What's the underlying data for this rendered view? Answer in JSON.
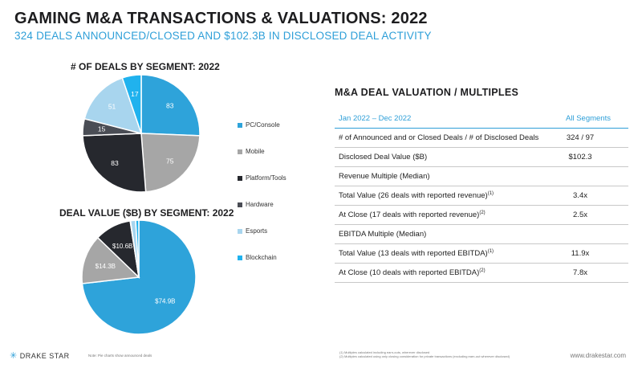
{
  "header": {
    "title": "GAMING M&A TRANSACTIONS & VALUATIONS: 2022",
    "subtitle": "324 DEALS ANNOUNCED/CLOSED AND $102.3B IN DISCLOSED DEAL ACTIVITY"
  },
  "colors": {
    "PC/Console": "#2ea3da",
    "Mobile": "#a6a6a6",
    "Platform/Tools": "#26282e",
    "Hardware": "#4a4d55",
    "Esports": "#a8d5ee",
    "Blockchain": "#20b2ee"
  },
  "legend": {
    "items": [
      {
        "label": "PC/Console",
        "color": "#2ea3da"
      },
      {
        "label": "Mobile",
        "color": "#a6a6a6"
      },
      {
        "label": "Platform/Tools",
        "color": "#26282e"
      },
      {
        "label": "Hardware",
        "color": "#4a4d55"
      },
      {
        "label": "Esports",
        "color": "#a8d5ee"
      },
      {
        "label": "Blockchain",
        "color": "#20b2ee"
      }
    ]
  },
  "chart_data": [
    {
      "type": "pie",
      "title": "# OF DEALS BY SEGMENT: 2022",
      "categories": [
        "PC/Console",
        "Mobile",
        "Platform/Tools",
        "Hardware",
        "Esports",
        "Blockchain"
      ],
      "values": [
        83,
        75,
        83,
        15,
        51,
        17
      ],
      "data_labels": [
        "83",
        "75",
        "83",
        "15",
        "51",
        "17"
      ],
      "legend_position": "right"
    },
    {
      "type": "pie",
      "title": "DEAL VALUE ($B) BY SEGMENT: 2022",
      "categories": [
        "PC/Console",
        "Mobile",
        "Platform/Tools",
        "Hardware",
        "Esports",
        "Blockchain"
      ],
      "values": [
        74.9,
        14.3,
        10.6,
        0.1,
        1.5,
        0.9
      ],
      "data_labels": [
        "$74.9B",
        "$14.3B",
        "$10.6B",
        "",
        "",
        ""
      ],
      "legend_position": "right"
    }
  ],
  "table": {
    "heading": "M&A DEAL VALUATION / MULTIPLES",
    "col_period": "Jan 2022 – Dec 2022",
    "col_value": "All Segments",
    "rows": [
      {
        "label": "# of Announced and or Closed Deals / # of Disclosed Deals",
        "sup": "",
        "value": "324 / 97"
      },
      {
        "label": "Disclosed Deal Value ($B)",
        "sup": "",
        "value": "$102.3"
      },
      {
        "label": "Revenue Multiple (Median)",
        "sup": "",
        "value": ""
      },
      {
        "label": "Total Value (26 deals with reported revenue)",
        "sup": "(1)",
        "value": "3.4x"
      },
      {
        "label": "At Close (17 deals with reported revenue)",
        "sup": "(2)",
        "value": "2.5x"
      },
      {
        "label": "EBITDA Multiple (Median)",
        "sup": "",
        "value": ""
      },
      {
        "label": "Total Value (13 deals with reported EBITDA)",
        "sup": "(1)",
        "value": "11.9x"
      },
      {
        "label": "At Close (10 deals with reported EBITDA)",
        "sup": "(2)",
        "value": "7.8x"
      }
    ]
  },
  "footer": {
    "logo": "DRAKE STAR",
    "note": "Note: Pie charts show announced deals",
    "footnote1": "(1) Multiples calculated including earn-outs, wherever disclosed",
    "footnote2": "(2) Multiples calculated using only closing consideration for private transactions (excluding earn-out wherever disclosed)",
    "url": "www.drakestar.com"
  }
}
